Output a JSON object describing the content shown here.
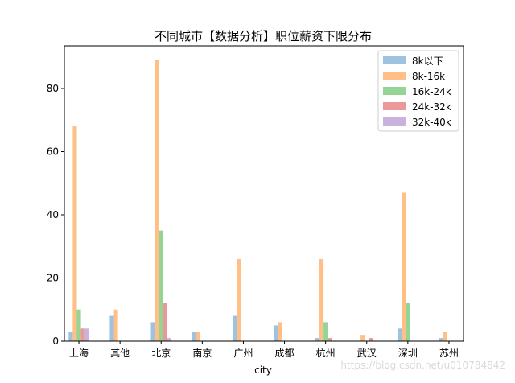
{
  "chart_data": {
    "type": "bar",
    "title": "不同城市【数据分析】职位薪资下限分布",
    "xlabel": "city",
    "ylabel": "",
    "ylim": [
      0,
      93.5
    ],
    "yticks": [
      0,
      20,
      40,
      60,
      80
    ],
    "categories": [
      "上海",
      "其他",
      "北京",
      "南京",
      "广州",
      "成都",
      "杭州",
      "武汉",
      "深圳",
      "苏州"
    ],
    "series": [
      {
        "name": "8k以下",
        "color": "#9dc3e0",
        "values": [
          3,
          8,
          6,
          3,
          8,
          5,
          1,
          0,
          4,
          1
        ]
      },
      {
        "name": "8k-16k",
        "color": "#ffbf86",
        "values": [
          68,
          10,
          89,
          3,
          26,
          6,
          26,
          2,
          47,
          3
        ]
      },
      {
        "name": "16k-24k",
        "color": "#96d496",
        "values": [
          10,
          0,
          35,
          0,
          0,
          0,
          6,
          0,
          12,
          0
        ]
      },
      {
        "name": "24k-32k",
        "color": "#eb9898",
        "values": [
          4,
          0,
          12,
          0,
          0,
          0,
          1,
          1,
          0,
          0
        ]
      },
      {
        "name": "32k-40k",
        "color": "#c9b3de",
        "values": [
          4,
          0,
          1,
          0,
          0,
          0,
          0,
          0,
          0,
          0
        ]
      }
    ],
    "legend_position": "top-right"
  },
  "watermark": "https://blog.csdn.net/u010784842"
}
